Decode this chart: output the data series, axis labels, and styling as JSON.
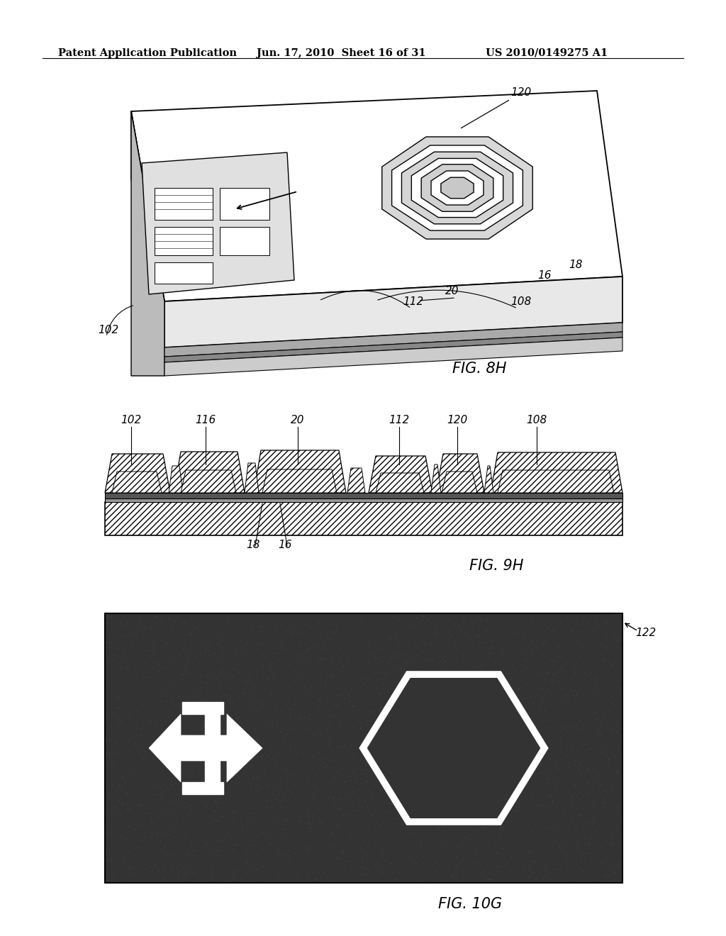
{
  "header_left": "Patent Application Publication",
  "header_mid": "Jun. 17, 2010  Sheet 16 of 31",
  "header_right": "US 2010/0149275 A1",
  "fig8h_label": "FIG. 8H",
  "fig9h_label": "FIG. 9H",
  "fig10g_label": "FIG. 10G",
  "background_color": "#ffffff",
  "dark_bg_color": "#333333",
  "fig_label_fontsize": 15,
  "header_fontsize": 10.5
}
